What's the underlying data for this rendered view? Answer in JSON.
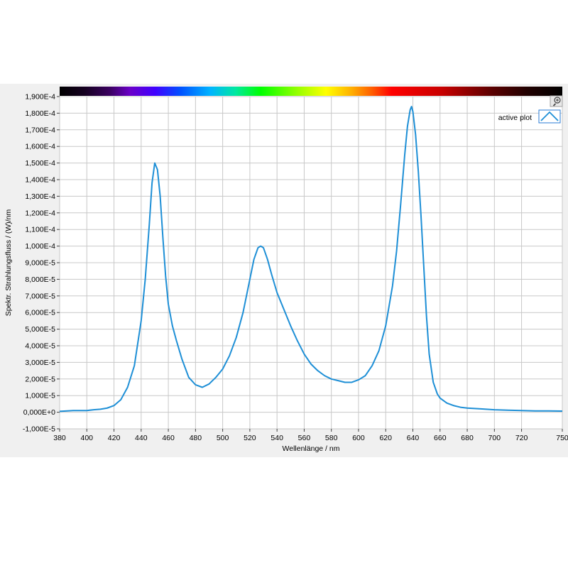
{
  "chart_data": {
    "type": "line",
    "title": "",
    "xlabel": "Wellenlänge / nm",
    "ylabel": "Spektr. Strahlungsfluss / (W)/nm",
    "xlim": [
      380,
      750
    ],
    "ylim": [
      -1e-05,
      0.00019
    ],
    "x_ticks": [
      "380",
      "400",
      "420",
      "440",
      "460",
      "480",
      "500",
      "520",
      "540",
      "560",
      "580",
      "600",
      "620",
      "640",
      "660",
      "680",
      "700",
      "720",
      "750"
    ],
    "x_tick_values": [
      380,
      400,
      420,
      440,
      460,
      480,
      500,
      520,
      540,
      560,
      580,
      600,
      620,
      640,
      660,
      680,
      700,
      720,
      750
    ],
    "y_ticks": [
      "-1,000E-5",
      "0,000E+0",
      "1,000E-5",
      "2,000E-5",
      "3,000E-5",
      "4,000E-5",
      "5,000E-5",
      "6,000E-5",
      "7,000E-5",
      "8,000E-5",
      "9,000E-5",
      "1,000E-4",
      "1,100E-4",
      "1,200E-4",
      "1,300E-4",
      "1,400E-4",
      "1,500E-4",
      "1,600E-4",
      "1,700E-4",
      "1,800E-4",
      "1,900E-4"
    ],
    "y_tick_values": [
      -1e-05,
      0,
      1e-05,
      2e-05,
      3e-05,
      4e-05,
      5e-05,
      6e-05,
      7e-05,
      8e-05,
      9e-05,
      0.0001,
      0.00011,
      0.00012,
      0.00013,
      0.00014,
      0.00015,
      0.00016,
      0.00017,
      0.00018,
      0.00019
    ],
    "grid": true,
    "legend_position": "top-right",
    "series": [
      {
        "name": "active plot",
        "color": "#1e8fd6",
        "x": [
          380,
          390,
          400,
          405,
          410,
          415,
          420,
          425,
          430,
          435,
          440,
          443,
          446,
          448,
          450,
          452,
          454,
          456,
          458,
          460,
          463,
          466,
          470,
          475,
          480,
          485,
          490,
          495,
          500,
          505,
          510,
          515,
          520,
          523,
          526,
          528,
          530,
          533,
          536,
          540,
          545,
          550,
          555,
          560,
          565,
          570,
          575,
          580,
          585,
          590,
          595,
          600,
          605,
          610,
          615,
          620,
          625,
          628,
          631,
          634,
          636,
          638,
          639,
          640,
          642,
          644,
          646,
          648,
          650,
          652,
          655,
          658,
          660,
          665,
          670,
          675,
          680,
          690,
          700,
          710,
          720,
          730,
          740,
          750
        ],
        "y": [
          5e-07,
          1e-06,
          1e-06,
          1.5e-06,
          1.8e-06,
          2.5e-06,
          4e-06,
          7.5e-06,
          1.5e-05,
          2.8e-05,
          5.5e-05,
          8e-05,
          0.000113,
          0.000138,
          0.00015,
          0.000146,
          0.00013,
          0.000105,
          8.2e-05,
          6.5e-05,
          5.2e-05,
          4.3e-05,
          3.2e-05,
          2.1e-05,
          1.65e-05,
          1.5e-05,
          1.7e-05,
          2.1e-05,
          2.6e-05,
          3.4e-05,
          4.5e-05,
          6e-05,
          8e-05,
          9.2e-05,
          9.9e-05,
          0.0001,
          9.9e-05,
          9.2e-05,
          8.3e-05,
          7.2e-05,
          6.2e-05,
          5.2e-05,
          4.3e-05,
          3.5e-05,
          2.9e-05,
          2.5e-05,
          2.2e-05,
          2e-05,
          1.9e-05,
          1.8e-05,
          1.8e-05,
          1.95e-05,
          2.2e-05,
          2.8e-05,
          3.7e-05,
          5.2e-05,
          7.6e-05,
          9.7e-05,
          0.000125,
          0.000155,
          0.000172,
          0.000182,
          0.000184,
          0.000181,
          0.000167,
          0.000145,
          0.000118,
          8.8e-05,
          5.8e-05,
          3.5e-05,
          1.8e-05,
          1.1e-05,
          8.5e-06,
          5.5e-06,
          4e-06,
          3e-06,
          2.5e-06,
          2e-06,
          1.5e-06,
          1.2e-06,
          1e-06,
          8e-07,
          8e-07,
          7e-07
        ]
      }
    ]
  }
}
